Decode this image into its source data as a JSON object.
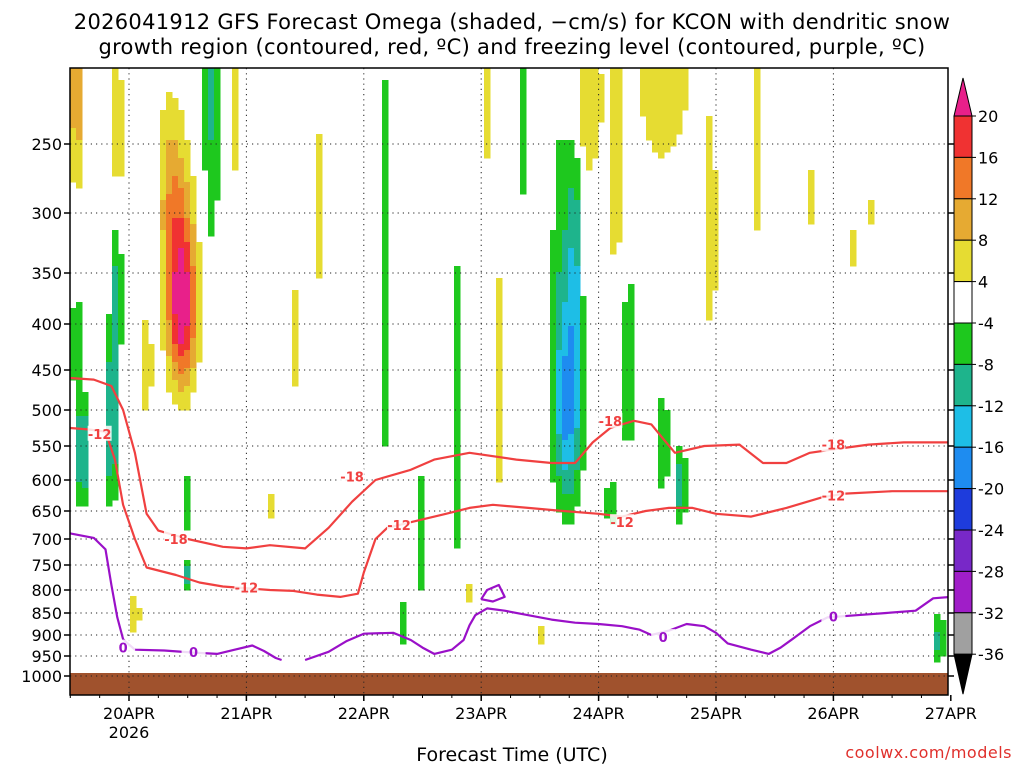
{
  "page": {
    "title_line1": "2026041912 GFS Forecast Omega (shaded, −cm/s) for KCON with dendritic snow",
    "title_line2": "growth region (contoured, red, ºC) and freezing level (contoured, purple, ºC)",
    "credit": "coolwx.com/models"
  },
  "chart_data": {
    "type": "heatmap",
    "title": "2026041912 GFS Forecast Omega (shaded, −cm/s) for KCON with dendritic snow growth region (contoured, red, ºC) and freezing level (contoured, purple, ºC)",
    "xlabel": "Forecast Time (UTC)",
    "ylabel": "",
    "x_tick_labels": [
      "20APR",
      "21APR",
      "22APR",
      "23APR",
      "24APR",
      "25APR",
      "26APR",
      "27APR"
    ],
    "x_tick_sublabel": "2026",
    "x_range_days": [
      -0.5,
      7.0
    ],
    "y_tick_levels": [
      250,
      300,
      350,
      400,
      450,
      500,
      550,
      600,
      650,
      700,
      750,
      800,
      850,
      900,
      950,
      1000
    ],
    "y_range_hpa": [
      200,
      1020
    ],
    "colorbar": {
      "labels": [
        20,
        16,
        12,
        8,
        4,
        -4,
        -8,
        -12,
        -16,
        -20,
        -24,
        -28,
        -32,
        -36
      ],
      "bins": [
        {
          "min": 20,
          "max": null,
          "color": "#e8208a"
        },
        {
          "min": 16,
          "max": 20,
          "color": "#f03232"
        },
        {
          "min": 12,
          "max": 16,
          "color": "#f07828"
        },
        {
          "min": 8,
          "max": 12,
          "color": "#e6aa32"
        },
        {
          "min": 4,
          "max": 8,
          "color": "#e6dc32"
        },
        {
          "min": -4,
          "max": 4,
          "color": "#ffffff"
        },
        {
          "min": -8,
          "max": -4,
          "color": "#1ec81e"
        },
        {
          "min": -12,
          "max": -8,
          "color": "#1eb48c"
        },
        {
          "min": -16,
          "max": -12,
          "color": "#1ebee6"
        },
        {
          "min": -20,
          "max": -16,
          "color": "#1e8cf0"
        },
        {
          "min": -24,
          "max": -20,
          "color": "#1e3cdc"
        },
        {
          "min": -28,
          "max": -24,
          "color": "#7828c8"
        },
        {
          "min": -32,
          "max": -28,
          "color": "#a01ec8"
        },
        {
          "min": -36,
          "max": -32,
          "color": "#a0a0a0"
        },
        {
          "min": null,
          "max": -36,
          "color": "#000000"
        }
      ]
    },
    "contour_colors": {
      "dgz": "#f04040",
      "freezing": "#9a10c8",
      "ground": "#a0522d"
    },
    "contours": {
      "minus12": {
        "label": "-12",
        "points": [
          [
            -0.5,
            525
          ],
          [
            -0.35,
            527
          ],
          [
            -0.2,
            530
          ],
          [
            -0.12,
            570
          ],
          [
            -0.05,
            640
          ],
          [
            0.05,
            700
          ],
          [
            0.15,
            755
          ],
          [
            0.4,
            770
          ],
          [
            0.6,
            785
          ],
          [
            0.8,
            793
          ],
          [
            1.2,
            800
          ],
          [
            1.4,
            802
          ],
          [
            1.6,
            810
          ],
          [
            1.8,
            815
          ],
          [
            1.95,
            808
          ],
          [
            2.0,
            765
          ],
          [
            2.1,
            700
          ],
          [
            2.2,
            680
          ],
          [
            2.4,
            670
          ],
          [
            2.7,
            655
          ],
          [
            2.9,
            645
          ],
          [
            3.1,
            640
          ],
          [
            3.4,
            645
          ],
          [
            3.7,
            650
          ],
          [
            4.0,
            655
          ],
          [
            4.2,
            660
          ],
          [
            4.4,
            650
          ],
          [
            4.6,
            645
          ],
          [
            4.8,
            645
          ],
          [
            5.0,
            655
          ],
          [
            5.3,
            660
          ],
          [
            5.6,
            645
          ],
          [
            5.9,
            628
          ],
          [
            6.1,
            622
          ],
          [
            6.5,
            618
          ],
          [
            7.0,
            618
          ]
        ],
        "label_positions": [
          [
            -0.25,
            533
          ],
          [
            1.0,
            795
          ],
          [
            2.3,
            675
          ],
          [
            4.2,
            670
          ],
          [
            6.0,
            625
          ]
        ]
      },
      "minus18": {
        "label": "-18",
        "points": [
          [
            -0.5,
            460
          ],
          [
            -0.3,
            462
          ],
          [
            -0.15,
            470
          ],
          [
            -0.05,
            500
          ],
          [
            0.05,
            560
          ],
          [
            0.15,
            655
          ],
          [
            0.25,
            685
          ],
          [
            0.5,
            700
          ],
          [
            0.8,
            715
          ],
          [
            1.0,
            718
          ],
          [
            1.2,
            712
          ],
          [
            1.5,
            718
          ],
          [
            1.7,
            680
          ],
          [
            1.9,
            635
          ],
          [
            2.1,
            600
          ],
          [
            2.4,
            585
          ],
          [
            2.6,
            570
          ],
          [
            2.9,
            560
          ],
          [
            3.3,
            570
          ],
          [
            3.6,
            575
          ],
          [
            3.8,
            575
          ],
          [
            3.95,
            545
          ],
          [
            4.1,
            525
          ],
          [
            4.3,
            515
          ],
          [
            4.45,
            520
          ],
          [
            4.55,
            540
          ],
          [
            4.65,
            560
          ],
          [
            4.9,
            550
          ],
          [
            5.2,
            548
          ],
          [
            5.4,
            575
          ],
          [
            5.6,
            575
          ],
          [
            5.8,
            560
          ],
          [
            6.0,
            555
          ],
          [
            6.3,
            548
          ],
          [
            6.6,
            545
          ],
          [
            7.0,
            545
          ]
        ],
        "label_positions": [
          [
            0.4,
            700
          ],
          [
            1.9,
            595
          ],
          [
            4.1,
            515
          ],
          [
            6.0,
            548
          ]
        ]
      },
      "zero": {
        "label": "0",
        "points": [
          [
            -0.5,
            690
          ],
          [
            -0.3,
            698
          ],
          [
            -0.2,
            720
          ],
          [
            -0.15,
            790
          ],
          [
            -0.1,
            860
          ],
          [
            -0.05,
            910
          ],
          [
            0.05,
            935
          ],
          [
            0.3,
            937
          ],
          [
            0.55,
            942
          ],
          [
            0.75,
            945
          ],
          [
            0.9,
            935
          ],
          [
            1.05,
            925
          ],
          [
            1.15,
            938
          ],
          [
            1.25,
            955
          ],
          [
            1.3,
            960
          ]
        ],
        "label_positions": [
          [
            -0.05,
            930
          ],
          [
            0.55,
            940
          ],
          [
            4.55,
            905
          ],
          [
            6.0,
            858
          ]
        ],
        "segments": [
          [
            [
              1.5,
              960
            ],
            [
              1.7,
              940
            ],
            [
              1.85,
              915
            ],
            [
              2.0,
              897
            ],
            [
              2.25,
              895
            ],
            [
              2.4,
              912
            ],
            [
              2.5,
              930
            ],
            [
              2.6,
              945
            ],
            [
              2.75,
              935
            ],
            [
              2.85,
              912
            ],
            [
              2.9,
              878
            ],
            [
              2.95,
              855
            ],
            [
              3.05,
              840
            ],
            [
              3.2,
              845
            ],
            [
              3.4,
              855
            ],
            [
              3.6,
              865
            ],
            [
              3.8,
              872
            ],
            [
              4.0,
              875
            ],
            [
              4.2,
              880
            ],
            [
              4.35,
              888
            ],
            [
              4.45,
              900
            ],
            [
              4.6,
              890
            ],
            [
              4.75,
              875
            ],
            [
              4.9,
              880
            ],
            [
              5.0,
              895
            ],
            [
              5.1,
              920
            ],
            [
              5.3,
              935
            ],
            [
              5.45,
              945
            ],
            [
              5.55,
              930
            ],
            [
              5.65,
              910
            ],
            [
              5.8,
              880
            ],
            [
              5.95,
              860
            ],
            [
              6.2,
              855
            ],
            [
              6.45,
              850
            ],
            [
              6.7,
              845
            ],
            [
              6.85,
              818
            ],
            [
              7.0,
              815
            ]
          ],
          [
            [
              3.0,
              820
            ],
            [
              3.05,
              800
            ],
            [
              3.15,
              790
            ],
            [
              3.2,
              815
            ],
            [
              3.1,
              825
            ],
            [
              3.0,
              820
            ]
          ]
        ]
      }
    }
  }
}
